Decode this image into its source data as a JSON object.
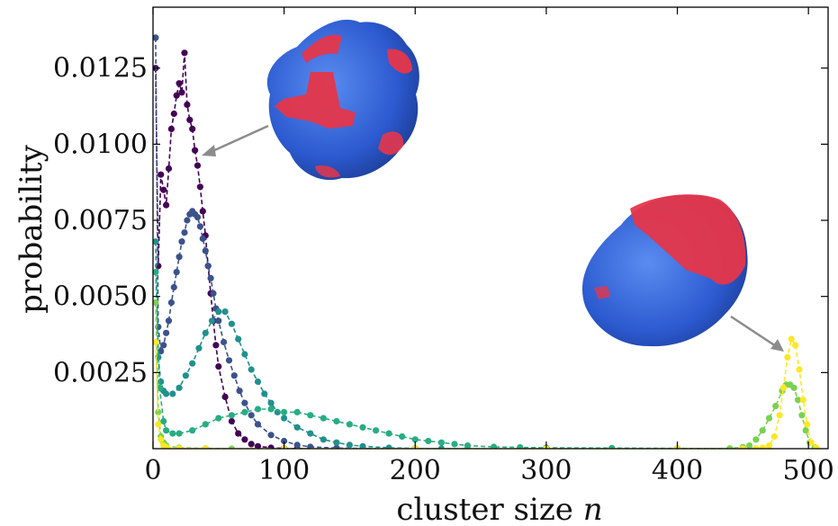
{
  "chart_data": {
    "type": "scatter",
    "title": "",
    "xlabel_text": "cluster size ",
    "xlabel_var": "n",
    "ylabel": "probability",
    "xlim": [
      0,
      515
    ],
    "ylim": [
      0,
      0.0145
    ],
    "x_ticks": [
      0,
      100,
      200,
      300,
      400,
      500
    ],
    "x_tick_labels": [
      "0",
      "100",
      "200",
      "300",
      "400",
      "500"
    ],
    "y_ticks": [
      0.0025,
      0.005,
      0.0075,
      0.01,
      0.0125
    ],
    "y_tick_labels": [
      "0.0025",
      "0.0050",
      "0.0075",
      "0.0100",
      "0.0125"
    ],
    "grid": false,
    "legend": "none",
    "line_style": "dashed with circular markers",
    "colormap": "viridis",
    "series": [
      {
        "color": "#440154",
        "x": [
          2,
          4,
          6,
          8,
          10,
          12,
          14,
          16,
          18,
          20,
          22,
          24,
          26,
          28,
          30,
          32,
          34,
          36,
          38,
          40,
          42,
          44,
          46,
          48,
          50,
          55,
          60,
          65,
          70,
          75,
          80,
          90,
          100,
          110,
          120
        ],
        "y": [
          0.0125,
          0.006,
          0.009,
          0.0085,
          0.008,
          0.0092,
          0.0105,
          0.011,
          0.0116,
          0.012,
          0.0117,
          0.013,
          0.0113,
          0.0108,
          0.0105,
          0.0098,
          0.0093,
          0.0086,
          0.0078,
          0.007,
          0.006,
          0.0051,
          0.0042,
          0.0034,
          0.0027,
          0.0017,
          0.0009,
          0.0005,
          0.0003,
          0.00015,
          8e-05,
          3e-05,
          1e-05,
          0.0,
          0.0
        ]
      },
      {
        "color": "#3b528b",
        "x": [
          2,
          4,
          6,
          8,
          10,
          12,
          14,
          16,
          18,
          20,
          22,
          24,
          26,
          28,
          30,
          32,
          34,
          36,
          38,
          40,
          42,
          44,
          46,
          48,
          50,
          54,
          58,
          62,
          66,
          70,
          75,
          80,
          90,
          100,
          110,
          120,
          140,
          160,
          180,
          200
        ],
        "y": [
          0.0135,
          0.004,
          0.0032,
          0.0034,
          0.0038,
          0.0042,
          0.0048,
          0.0053,
          0.0058,
          0.0063,
          0.0068,
          0.0071,
          0.0075,
          0.0077,
          0.0078,
          0.0077,
          0.0076,
          0.0073,
          0.0069,
          0.0065,
          0.006,
          0.0056,
          0.0051,
          0.0046,
          0.0042,
          0.0035,
          0.0029,
          0.0024,
          0.0019,
          0.0015,
          0.0011,
          0.0008,
          0.00045,
          0.00025,
          0.00012,
          6e-05,
          2e-05,
          1e-05,
          0.0,
          0.0
        ]
      },
      {
        "color": "#21908d",
        "x": [
          2,
          4,
          6,
          8,
          10,
          15,
          20,
          25,
          30,
          35,
          40,
          45,
          50,
          55,
          60,
          65,
          70,
          75,
          80,
          85,
          90,
          95,
          100,
          110,
          120,
          130,
          140,
          150,
          160,
          180,
          200,
          220,
          240
        ],
        "y": [
          0.0068,
          0.003,
          0.0022,
          0.0019,
          0.0018,
          0.0018,
          0.002,
          0.0024,
          0.0028,
          0.0033,
          0.0038,
          0.0042,
          0.0045,
          0.0045,
          0.0041,
          0.0036,
          0.0031,
          0.0026,
          0.0022,
          0.0018,
          0.0015,
          0.0012,
          0.001,
          0.0007,
          0.0005,
          0.0003,
          0.0002,
          0.00012,
          8e-05,
          3e-05,
          1e-05,
          0.0,
          0.0
        ]
      },
      {
        "color": "#27ad81",
        "x": [
          2,
          5,
          8,
          10,
          15,
          20,
          30,
          40,
          50,
          60,
          70,
          80,
          90,
          100,
          110,
          120,
          130,
          140,
          150,
          160,
          170,
          180,
          190,
          200,
          210,
          220,
          230,
          240,
          260,
          280,
          300,
          350,
          400,
          450
        ],
        "y": [
          0.0058,
          0.002,
          0.0009,
          0.0006,
          0.0005,
          0.0005,
          0.0006,
          0.0008,
          0.001,
          0.0011,
          0.0012,
          0.0013,
          0.0013,
          0.0012,
          0.0012,
          0.0011,
          0.001,
          0.0009,
          0.0008,
          0.0007,
          0.0006,
          0.0005,
          0.0004,
          0.0003,
          0.00025,
          0.0002,
          0.00015,
          0.0001,
          6e-05,
          4e-05,
          3e-05,
          2e-05,
          1e-05,
          0.0
        ]
      },
      {
        "color": "#7ad151",
        "x": [
          2,
          4,
          6,
          8,
          10,
          20,
          40,
          60,
          100,
          200,
          300,
          400,
          440,
          450,
          455,
          460,
          465,
          470,
          475,
          480,
          483,
          486,
          489,
          492,
          495,
          498,
          501,
          505
        ],
        "y": [
          0.0048,
          0.0012,
          0.0004,
          0.0002,
          0.0001,
          3e-05,
          1e-05,
          0.0,
          0.0,
          0.0,
          0.0,
          0.0,
          1e-05,
          5e-05,
          0.0001,
          0.0003,
          0.0006,
          0.001,
          0.0014,
          0.0019,
          0.0021,
          0.0021,
          0.002,
          0.0016,
          0.0011,
          0.0006,
          0.0002,
          4e-05
        ]
      },
      {
        "color": "#fde725",
        "x": [
          2,
          4,
          6,
          8,
          10,
          20,
          40,
          100,
          200,
          300,
          400,
          450,
          460,
          465,
          470,
          474,
          478,
          481,
          484,
          487,
          490,
          493,
          496,
          499,
          502,
          506
        ],
        "y": [
          0.0035,
          0.0008,
          0.0003,
          0.0001,
          5e-05,
          1e-05,
          0.0,
          0.0,
          0.0,
          0.0,
          0.0,
          0.0,
          1e-05,
          3e-05,
          0.0001,
          0.0004,
          0.0011,
          0.002,
          0.003,
          0.0036,
          0.0034,
          0.0026,
          0.0016,
          0.0008,
          0.0002,
          3e-05
        ]
      }
    ],
    "insets": [
      {
        "depicts": "red-blue cluster rendering (small)",
        "points_to": [
          35,
          0.0097
        ]
      },
      {
        "depicts": "red-blue cluster rendering (large)",
        "points_to": [
          478,
          0.0032
        ]
      }
    ]
  }
}
